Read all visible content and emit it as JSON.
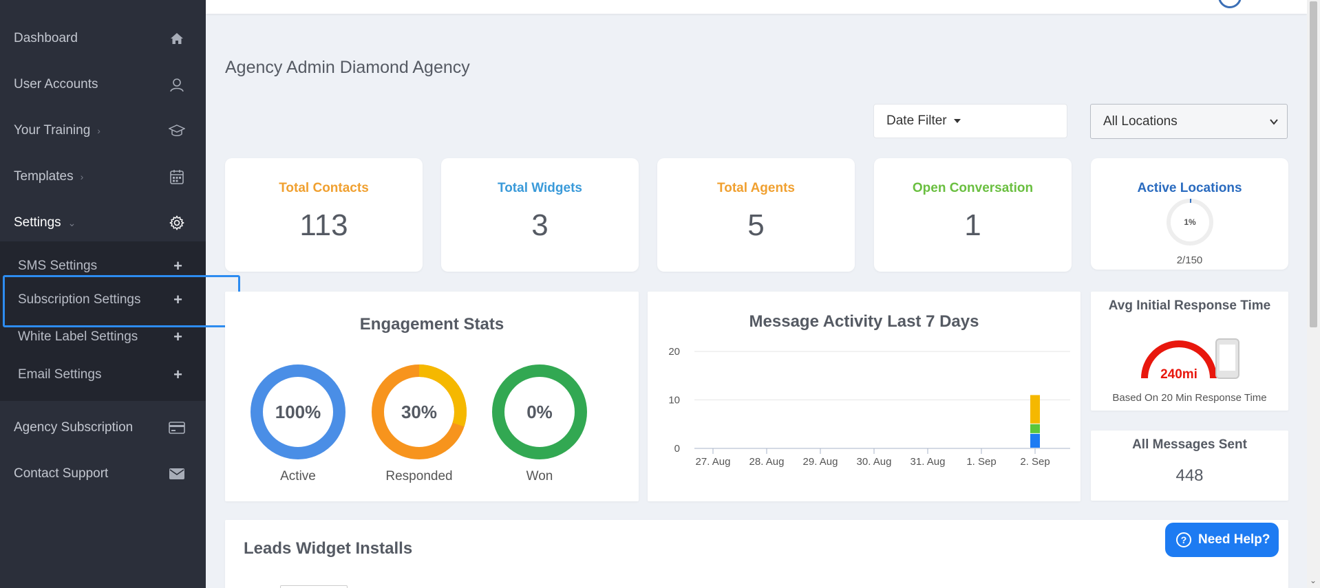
{
  "sidebar": {
    "items": [
      {
        "label": "Dashboard",
        "icon": "home-icon"
      },
      {
        "label": "User Accounts",
        "icon": "user-icon"
      },
      {
        "label": "Your Training",
        "icon": "graduation-cap-icon"
      },
      {
        "label": "Templates",
        "icon": "calendar-icon"
      },
      {
        "label": "Settings",
        "icon": "gear-icon"
      },
      {
        "label": "Agency Subscription",
        "icon": "credit-card-icon"
      },
      {
        "label": "Contact Support",
        "icon": "envelope-icon"
      }
    ],
    "settings_submenu": [
      {
        "label": "SMS Settings"
      },
      {
        "label": "Subscription Settings"
      },
      {
        "label": "White Label Settings"
      },
      {
        "label": "Email Settings"
      }
    ]
  },
  "header": {
    "page_title": "Agency Admin Diamond Agency",
    "date_filter_label": "Date Filter",
    "location_select_value": "All Locations"
  },
  "stats": [
    {
      "title": "Total Contacts",
      "value": "113",
      "color": "#f0a030"
    },
    {
      "title": "Total Widgets",
      "value": "3",
      "color": "#3a9ad9"
    },
    {
      "title": "Total Agents",
      "value": "5",
      "color": "#f0a030"
    },
    {
      "title": "Open Conversation",
      "value": "1",
      "color": "#6abf40"
    }
  ],
  "active_locations": {
    "title": "Active Locations",
    "percent_label": "1%",
    "percent": 0.01,
    "count": "2/150"
  },
  "engagement": {
    "title": "Engagement Stats",
    "donuts": [
      {
        "label": "Active",
        "value_label": "100%",
        "percent": 1.0,
        "color": "#4a8ee6"
      },
      {
        "label": "Responded",
        "value_label": "30%",
        "percent": 0.3,
        "color": "#f7941d",
        "accent": "#f5b800"
      },
      {
        "label": "Won",
        "value_label": "0%",
        "percent": 0.0,
        "color": "#32a852"
      }
    ]
  },
  "message_activity": {
    "title": "Message Activity Last 7 Days"
  },
  "chart_data": {
    "type": "bar",
    "title": "Message Activity Last 7 Days",
    "categories": [
      "27. Aug",
      "28. Aug",
      "29. Aug",
      "30. Aug",
      "31. Aug",
      "1. Sep",
      "2. Sep"
    ],
    "y_ticks": [
      "0",
      "10",
      "20"
    ],
    "ylim": [
      0,
      20
    ],
    "stacked": true,
    "series": [
      {
        "color": "#1d7bf2",
        "values": [
          0,
          0,
          0,
          0,
          0,
          0,
          3
        ]
      },
      {
        "color": "#5cc63c",
        "values": [
          0,
          0,
          0,
          0,
          0,
          0,
          2
        ]
      },
      {
        "color": "#f5b800",
        "values": [
          0,
          0,
          0,
          0,
          0,
          0,
          6
        ]
      }
    ]
  },
  "response_time": {
    "title": "Avg Initial Response Time",
    "value": "240mi",
    "note": "Based On 20 Min Response Time"
  },
  "messages_sent": {
    "title": "All Messages Sent",
    "value": "448"
  },
  "leads_widget": {
    "title": "Leads Widget Installs"
  },
  "help_button": {
    "label": "Need Help?",
    "icon": "question-icon"
  }
}
